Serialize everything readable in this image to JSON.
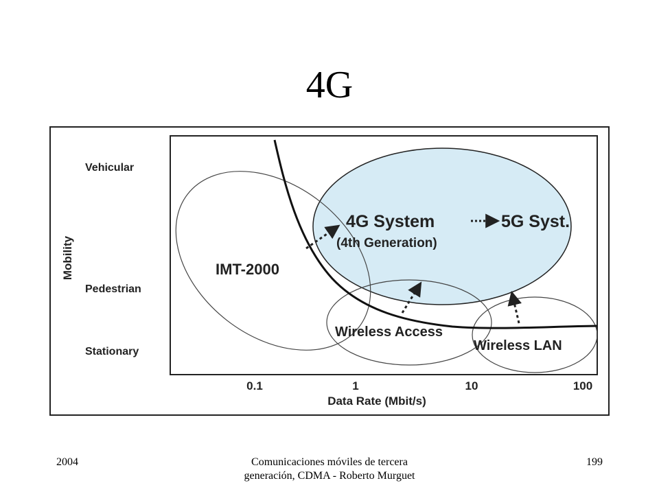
{
  "slide": {
    "title": "4G",
    "footer": {
      "year": "2004",
      "center_text": "Comunicaciones móviles de tercera generación, CDMA - Roberto Murguet",
      "page_number": "199"
    }
  },
  "diagram": {
    "y_axis_label": "Mobility",
    "x_axis_label": "Data Rate (Mbit/s)",
    "mobility_levels": [
      "Vehicular",
      "Pedestrian",
      "Stationary"
    ],
    "x_ticks": [
      "0.1",
      "1",
      "10",
      "100"
    ],
    "regions": {
      "imt2000": "IMT-2000",
      "system_4g": "4G System",
      "system_5g": "5G Syst.",
      "generation_note": "(4th Generation)",
      "wireless_access": "Wireless Access",
      "wireless_lan": "Wireless LAN"
    },
    "colors": {
      "highlight_fill": "#d6ebf5",
      "line": "#222222"
    }
  }
}
